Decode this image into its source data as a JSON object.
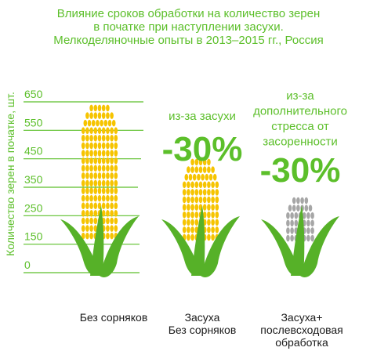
{
  "title_lines": [
    "Влияние сроков обработки на количество зерен",
    "в початке при наступлении засухи.",
    "Мелкоделяночные опыты в 2013–2015 гг., Россия"
  ],
  "colors": {
    "accent": "#5cbf2a",
    "kernel_yellow": "#f6c400",
    "kernel_gray": "#a6a6a6",
    "leaf_green": "#56b128"
  },
  "chart_data": {
    "type": "bar",
    "title": "Влияние сроков обработки на количество зерен в початке при наступлении засухи. Мелкоделяночные опыты в 2013–2015 гг., Россия",
    "ylabel": "Количество зерен в початке, шт.",
    "yticks": [
      0,
      150,
      250,
      350,
      450,
      550,
      650
    ],
    "ylim": [
      0,
      700
    ],
    "grid": true,
    "categories": [
      [
        "Без сорняков"
      ],
      [
        "Засуха",
        "Без сорняков"
      ],
      [
        "Засуха+",
        "послевсходовая",
        "обработка"
      ]
    ],
    "values": [
      640,
      450,
      315
    ],
    "annotations": [
      {
        "bar": 1,
        "text": [
          "из-за засухи"
        ],
        "value": "-30%"
      },
      {
        "bar": 2,
        "text": [
          "из-за",
          "дополнительного",
          "стресса от",
          "засоренности"
        ],
        "value": "-30%"
      }
    ]
  }
}
